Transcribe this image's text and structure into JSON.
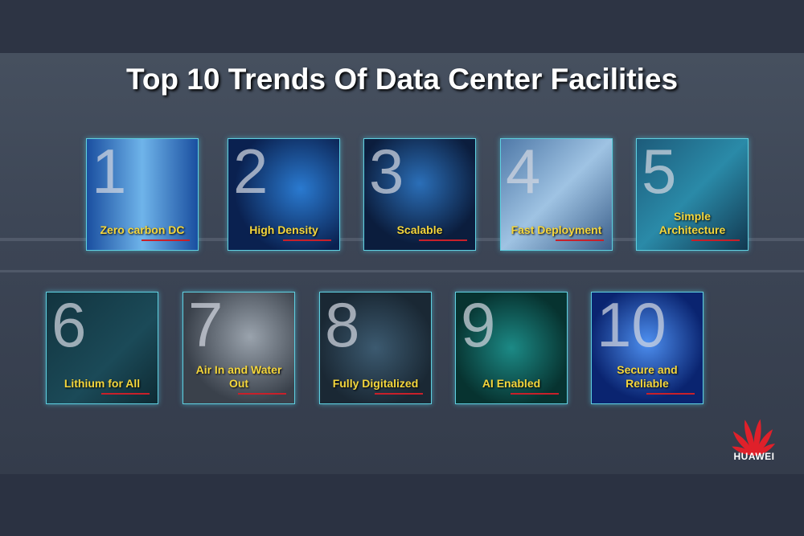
{
  "title": "Top 10 Trends Of Data Center Facilities",
  "trends": [
    {
      "number": "1",
      "label": "Zero carbon DC"
    },
    {
      "number": "2",
      "label": "High Density"
    },
    {
      "number": "3",
      "label": "Scalable"
    },
    {
      "number": "4",
      "label": "Fast Deployment"
    },
    {
      "number": "5",
      "label": "Simple Architecture"
    },
    {
      "number": "6",
      "label": "Lithium for All"
    },
    {
      "number": "7",
      "label": "Air In and Water Out"
    },
    {
      "number": "8",
      "label": "Fully Digitalized"
    },
    {
      "number": "9",
      "label": "AI Enabled"
    },
    {
      "number": "10",
      "label": "Secure and Reliable"
    }
  ],
  "brand": {
    "name": "HUAWEI",
    "color": "#e0202a"
  },
  "colors": {
    "label": "#f4d63c",
    "underline": "#c8202a",
    "border": "#5fd0e0"
  }
}
